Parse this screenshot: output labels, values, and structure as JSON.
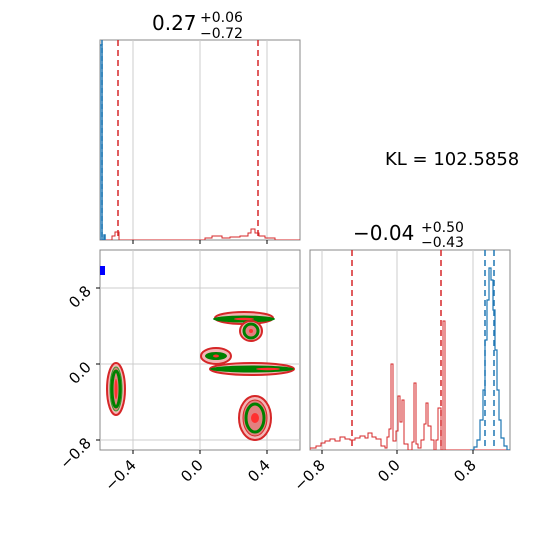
{
  "chart_data": [
    {
      "type": "histogram",
      "panel": "top-left marginal",
      "title": {
        "value": "0.27",
        "plus": "+0.06",
        "minus": "−0.72"
      },
      "xlim": [
        -0.6,
        0.6
      ],
      "grid": true,
      "quantile_lines": [
        -0.45,
        0.33
      ],
      "series": [
        {
          "color": "#d62728",
          "style": "step",
          "bins": [
            [
              -0.47,
              0.04
            ],
            [
              -0.445,
              0.02
            ],
            [
              0.05,
              0.01
            ],
            [
              0.1,
              0.02
            ],
            [
              0.15,
              0.015
            ],
            [
              0.2,
              0.02
            ],
            [
              0.25,
              0.025
            ],
            [
              0.3,
              0.06
            ],
            [
              0.33,
              0.04
            ],
            [
              0.36,
              0.02
            ],
            [
              0.4,
              0.01
            ]
          ]
        },
        {
          "color": "#1f77b4",
          "style": "step",
          "spike_at": -0.595
        }
      ]
    },
    {
      "type": "histogram",
      "panel": "bottom-right marginal",
      "title": {
        "value": "−0.04",
        "plus": "+0.50",
        "minus": "−0.43"
      },
      "xlim": [
        -1.0,
        1.2
      ],
      "xticks": [
        "−0.8",
        "0.0",
        "0.8"
      ],
      "grid": true,
      "quantile_lines_red": [
        -0.47,
        0.46
      ],
      "quantile_lines_blue": [
        0.92,
        1.0
      ],
      "series": [
        {
          "color": "#d62728",
          "style": "step"
        },
        {
          "color": "#1f77b4",
          "style": "step",
          "peak_at": 0.96
        }
      ]
    },
    {
      "type": "contour",
      "panel": "bottom-left joint",
      "xlim": [
        -0.6,
        0.6
      ],
      "ylim": [
        -0.9,
        1.0
      ],
      "xticks": [
        "−0.4",
        "0.0",
        "0.4"
      ],
      "yticks": [
        "−0.8",
        "0.0",
        "0.8"
      ],
      "grid": true,
      "blobs": [
        {
          "x": -0.5,
          "y": -0.25,
          "rx": 0.05,
          "ry": 0.28
        },
        {
          "x": 0.3,
          "y": 0.47,
          "rx": 0.17,
          "ry": 0.05
        },
        {
          "x": 0.29,
          "y": 0.35,
          "rx": 0.06,
          "ry": 0.09
        },
        {
          "x": 0.09,
          "y": 0.08,
          "rx": 0.09,
          "ry": 0.07
        },
        {
          "x": 0.3,
          "y": -0.05,
          "rx": 0.26,
          "ry": 0.05
        },
        {
          "x": 0.33,
          "y": -0.57,
          "rx": 0.08,
          "ry": 0.22
        }
      ],
      "marker": {
        "x": -0.585,
        "y": 0.97,
        "color": "#0000ff"
      }
    }
  ],
  "annotation": "KL = 102.5858"
}
